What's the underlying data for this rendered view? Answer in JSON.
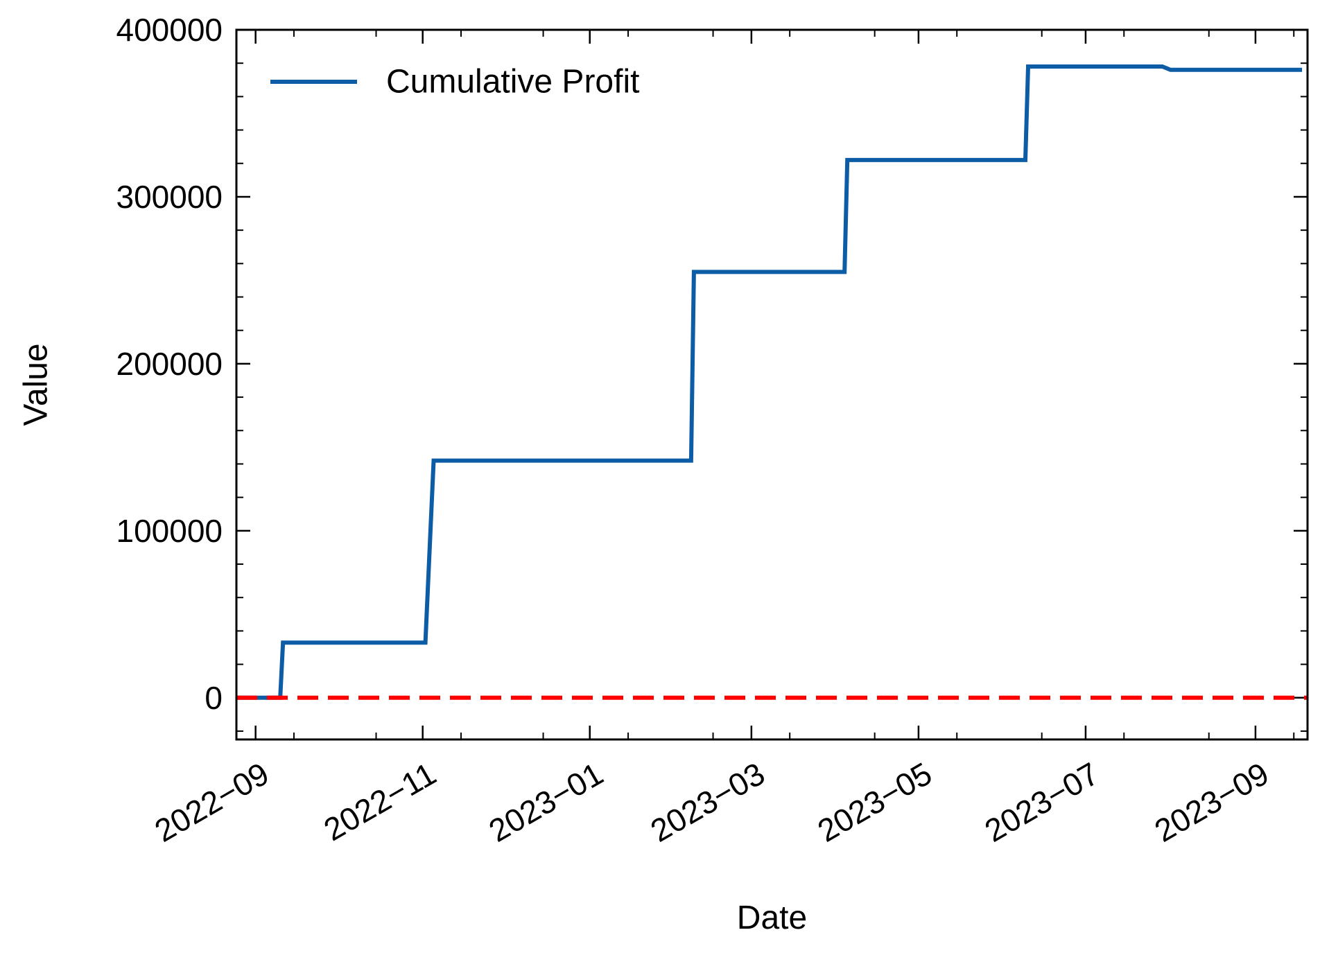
{
  "chart_data": {
    "type": "line",
    "title": "",
    "xlabel": "Date",
    "ylabel": "Value",
    "x_axis_type": "date",
    "xlim": [
      "2022-08-25",
      "2023-09-20"
    ],
    "ylim": [
      -25000,
      400000
    ],
    "x_ticks": [
      {
        "date": "2022-09-01",
        "label": "2022−09"
      },
      {
        "date": "2022-11-01",
        "label": "2022−11"
      },
      {
        "date": "2023-01-01",
        "label": "2023−01"
      },
      {
        "date": "2023-03-01",
        "label": "2023−03"
      },
      {
        "date": "2023-05-01",
        "label": "2023−05"
      },
      {
        "date": "2023-07-01",
        "label": "2023−07"
      },
      {
        "date": "2023-09-01",
        "label": "2023−09"
      }
    ],
    "y_ticks": [
      {
        "value": 0,
        "label": "0"
      },
      {
        "value": 100000,
        "label": "100000"
      },
      {
        "value": 200000,
        "label": "200000"
      },
      {
        "value": 300000,
        "label": "300000"
      },
      {
        "value": 400000,
        "label": "400000"
      }
    ],
    "y_minor_step": 20000,
    "grid": false,
    "legend_position": "top-left",
    "series": [
      {
        "name": "Cumulative Profit",
        "color": "#0C5DA5",
        "style": "solid",
        "points": [
          {
            "x": "2022-08-25",
            "y": 0
          },
          {
            "x": "2022-09-10",
            "y": 0
          },
          {
            "x": "2022-09-11",
            "y": 33000
          },
          {
            "x": "2022-11-02",
            "y": 33000
          },
          {
            "x": "2022-11-05",
            "y": 142000
          },
          {
            "x": "2023-02-07",
            "y": 142000
          },
          {
            "x": "2023-02-08",
            "y": 255000
          },
          {
            "x": "2023-04-04",
            "y": 255000
          },
          {
            "x": "2023-04-05",
            "y": 322000
          },
          {
            "x": "2023-06-09",
            "y": 322000
          },
          {
            "x": "2023-06-10",
            "y": 378000
          },
          {
            "x": "2023-07-29",
            "y": 378000
          },
          {
            "x": "2023-08-01",
            "y": 376000
          },
          {
            "x": "2023-09-18",
            "y": 376000
          }
        ]
      }
    ],
    "reference_lines": [
      {
        "orientation": "horizontal",
        "y": 0,
        "color": "#FF0000",
        "style": "dashed"
      }
    ]
  }
}
